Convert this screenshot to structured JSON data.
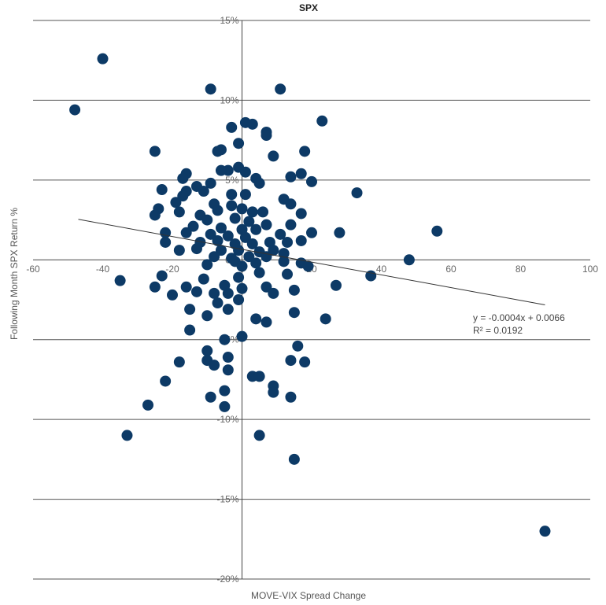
{
  "chart_data": {
    "type": "scatter",
    "title": "SPX",
    "xlabel": "MOVE-VIX Spread Change",
    "ylabel": "Following Month SPX Return %",
    "xlim": [
      -60,
      100
    ],
    "ylim": [
      -0.2,
      0.15
    ],
    "x_ticks": [
      -60,
      -40,
      -20,
      0,
      20,
      40,
      60,
      80,
      100
    ],
    "x_tick_labels": [
      "-60",
      "-40",
      "-20",
      "0",
      "20",
      "40",
      "60",
      "80",
      "100"
    ],
    "y_ticks": [
      0.15,
      0.1,
      0.05,
      0.0,
      -0.05,
      -0.1,
      -0.15,
      -0.2
    ],
    "y_tick_labels": [
      "15%",
      "10%",
      "5%",
      "0%",
      "-5%",
      "-10%",
      "-15%",
      "-20%"
    ],
    "grid": true,
    "marker_color": "#0d3a66",
    "trendline": {
      "slope": -0.0004,
      "intercept": 0.0066,
      "x_range": [
        -47,
        87
      ],
      "equation_label": "y = -0.0004x + 0.0066",
      "r2_label": "R² = 0.0192"
    },
    "points": [
      {
        "x": -40,
        "y": 0.126
      },
      {
        "x": -48,
        "y": 0.094
      },
      {
        "x": -9,
        "y": 0.107
      },
      {
        "x": 11,
        "y": 0.107
      },
      {
        "x": 23,
        "y": 0.087
      },
      {
        "x": -3,
        "y": 0.083
      },
      {
        "x": 1,
        "y": 0.086
      },
      {
        "x": 3,
        "y": 0.085
      },
      {
        "x": 7,
        "y": 0.08
      },
      {
        "x": 7,
        "y": 0.078
      },
      {
        "x": -1,
        "y": 0.073
      },
      {
        "x": -25,
        "y": 0.068
      },
      {
        "x": -6,
        "y": 0.069
      },
      {
        "x": -7,
        "y": 0.068
      },
      {
        "x": 9,
        "y": 0.065
      },
      {
        "x": 18,
        "y": 0.068
      },
      {
        "x": -16,
        "y": 0.054
      },
      {
        "x": -4,
        "y": 0.056
      },
      {
        "x": -1,
        "y": 0.058
      },
      {
        "x": 1,
        "y": 0.055
      },
      {
        "x": 17,
        "y": 0.054
      },
      {
        "x": -6,
        "y": 0.056
      },
      {
        "x": -17,
        "y": 0.051
      },
      {
        "x": 4,
        "y": 0.051
      },
      {
        "x": 14,
        "y": 0.052
      },
      {
        "x": 20,
        "y": 0.049
      },
      {
        "x": -9,
        "y": 0.048
      },
      {
        "x": -13,
        "y": 0.046
      },
      {
        "x": -23,
        "y": 0.044
      },
      {
        "x": -16,
        "y": 0.043
      },
      {
        "x": -11,
        "y": 0.043
      },
      {
        "x": -3,
        "y": 0.041
      },
      {
        "x": 5,
        "y": 0.048
      },
      {
        "x": 33,
        "y": 0.042
      },
      {
        "x": -17,
        "y": 0.04
      },
      {
        "x": -19,
        "y": 0.036
      },
      {
        "x": -8,
        "y": 0.035
      },
      {
        "x": 1,
        "y": 0.041
      },
      {
        "x": 12,
        "y": 0.038
      },
      {
        "x": 14,
        "y": 0.035
      },
      {
        "x": -24,
        "y": 0.032
      },
      {
        "x": -18,
        "y": 0.03
      },
      {
        "x": -12,
        "y": 0.028
      },
      {
        "x": -7,
        "y": 0.031
      },
      {
        "x": -3,
        "y": 0.034
      },
      {
        "x": 0,
        "y": 0.032
      },
      {
        "x": 3,
        "y": 0.03
      },
      {
        "x": 6,
        "y": 0.03
      },
      {
        "x": 17,
        "y": 0.029
      },
      {
        "x": -25,
        "y": 0.028
      },
      {
        "x": -10,
        "y": 0.025
      },
      {
        "x": -2,
        "y": 0.026
      },
      {
        "x": 2,
        "y": 0.024
      },
      {
        "x": 7,
        "y": 0.022
      },
      {
        "x": 14,
        "y": 0.022
      },
      {
        "x": -14,
        "y": 0.021
      },
      {
        "x": -6,
        "y": 0.02
      },
      {
        "x": 0,
        "y": 0.019
      },
      {
        "x": 4,
        "y": 0.019
      },
      {
        "x": 28,
        "y": 0.017
      },
      {
        "x": 56,
        "y": 0.018
      },
      {
        "x": -22,
        "y": 0.017
      },
      {
        "x": -16,
        "y": 0.017
      },
      {
        "x": -9,
        "y": 0.016
      },
      {
        "x": -4,
        "y": 0.015
      },
      {
        "x": 1,
        "y": 0.014
      },
      {
        "x": 11,
        "y": 0.016
      },
      {
        "x": 20,
        "y": 0.017
      },
      {
        "x": -22,
        "y": 0.011
      },
      {
        "x": -12,
        "y": 0.011
      },
      {
        "x": -7,
        "y": 0.012
      },
      {
        "x": -2,
        "y": 0.01
      },
      {
        "x": 3,
        "y": 0.01
      },
      {
        "x": 8,
        "y": 0.011
      },
      {
        "x": 13,
        "y": 0.011
      },
      {
        "x": 17,
        "y": 0.012
      },
      {
        "x": -18,
        "y": 0.006
      },
      {
        "x": -13,
        "y": 0.007
      },
      {
        "x": -6,
        "y": 0.006
      },
      {
        "x": -1,
        "y": 0.006
      },
      {
        "x": 5,
        "y": 0.005
      },
      {
        "x": 9,
        "y": 0.006
      },
      {
        "x": 12,
        "y": 0.004
      },
      {
        "x": -8,
        "y": 0.002
      },
      {
        "x": -3,
        "y": 0.001
      },
      {
        "x": 2,
        "y": 0.002
      },
      {
        "x": 7,
        "y": 0.002
      },
      {
        "x": 48,
        "y": 0.0
      },
      {
        "x": -2,
        "y": -0.001
      },
      {
        "x": 4,
        "y": -0.002
      },
      {
        "x": 12,
        "y": -0.001
      },
      {
        "x": 17,
        "y": -0.002
      },
      {
        "x": -10,
        "y": -0.003
      },
      {
        "x": 0,
        "y": -0.004
      },
      {
        "x": 19,
        "y": -0.004
      },
      {
        "x": -23,
        "y": -0.01
      },
      {
        "x": 37,
        "y": -0.01
      },
      {
        "x": -35,
        "y": -0.013
      },
      {
        "x": -11,
        "y": -0.012
      },
      {
        "x": -1,
        "y": -0.011
      },
      {
        "x": 5,
        "y": -0.008
      },
      {
        "x": 13,
        "y": -0.009
      },
      {
        "x": 27,
        "y": -0.016
      },
      {
        "x": -25,
        "y": -0.017
      },
      {
        "x": -16,
        "y": -0.017
      },
      {
        "x": -13,
        "y": -0.02
      },
      {
        "x": -5,
        "y": -0.016
      },
      {
        "x": 0,
        "y": -0.018
      },
      {
        "x": 7,
        "y": -0.017
      },
      {
        "x": 15,
        "y": -0.019
      },
      {
        "x": -20,
        "y": -0.022
      },
      {
        "x": -8,
        "y": -0.021
      },
      {
        "x": -4,
        "y": -0.021
      },
      {
        "x": 9,
        "y": -0.021
      },
      {
        "x": -7,
        "y": -0.027
      },
      {
        "x": -1,
        "y": -0.025
      },
      {
        "x": -4,
        "y": -0.031
      },
      {
        "x": -10,
        "y": -0.035
      },
      {
        "x": -15,
        "y": -0.031
      },
      {
        "x": 4,
        "y": -0.037
      },
      {
        "x": 7,
        "y": -0.039
      },
      {
        "x": 15,
        "y": -0.033
      },
      {
        "x": 24,
        "y": -0.037
      },
      {
        "x": -15,
        "y": -0.044
      },
      {
        "x": -5,
        "y": -0.05
      },
      {
        "x": 0,
        "y": -0.048
      },
      {
        "x": -10,
        "y": -0.057
      },
      {
        "x": -4,
        "y": -0.061
      },
      {
        "x": -10,
        "y": -0.063
      },
      {
        "x": -8,
        "y": -0.066
      },
      {
        "x": -18,
        "y": -0.064
      },
      {
        "x": 16,
        "y": -0.054
      },
      {
        "x": 14,
        "y": -0.063
      },
      {
        "x": 18,
        "y": -0.064
      },
      {
        "x": -4,
        "y": -0.069
      },
      {
        "x": 3,
        "y": -0.073
      },
      {
        "x": 5,
        "y": -0.073
      },
      {
        "x": -22,
        "y": -0.076
      },
      {
        "x": 9,
        "y": -0.079
      },
      {
        "x": 9,
        "y": -0.083
      },
      {
        "x": 14,
        "y": -0.086
      },
      {
        "x": -5,
        "y": -0.082
      },
      {
        "x": -9,
        "y": -0.086
      },
      {
        "x": -27,
        "y": -0.091
      },
      {
        "x": -5,
        "y": -0.092
      },
      {
        "x": -33,
        "y": -0.11
      },
      {
        "x": 5,
        "y": -0.11
      },
      {
        "x": 15,
        "y": -0.125
      },
      {
        "x": 87,
        "y": -0.17
      }
    ]
  }
}
